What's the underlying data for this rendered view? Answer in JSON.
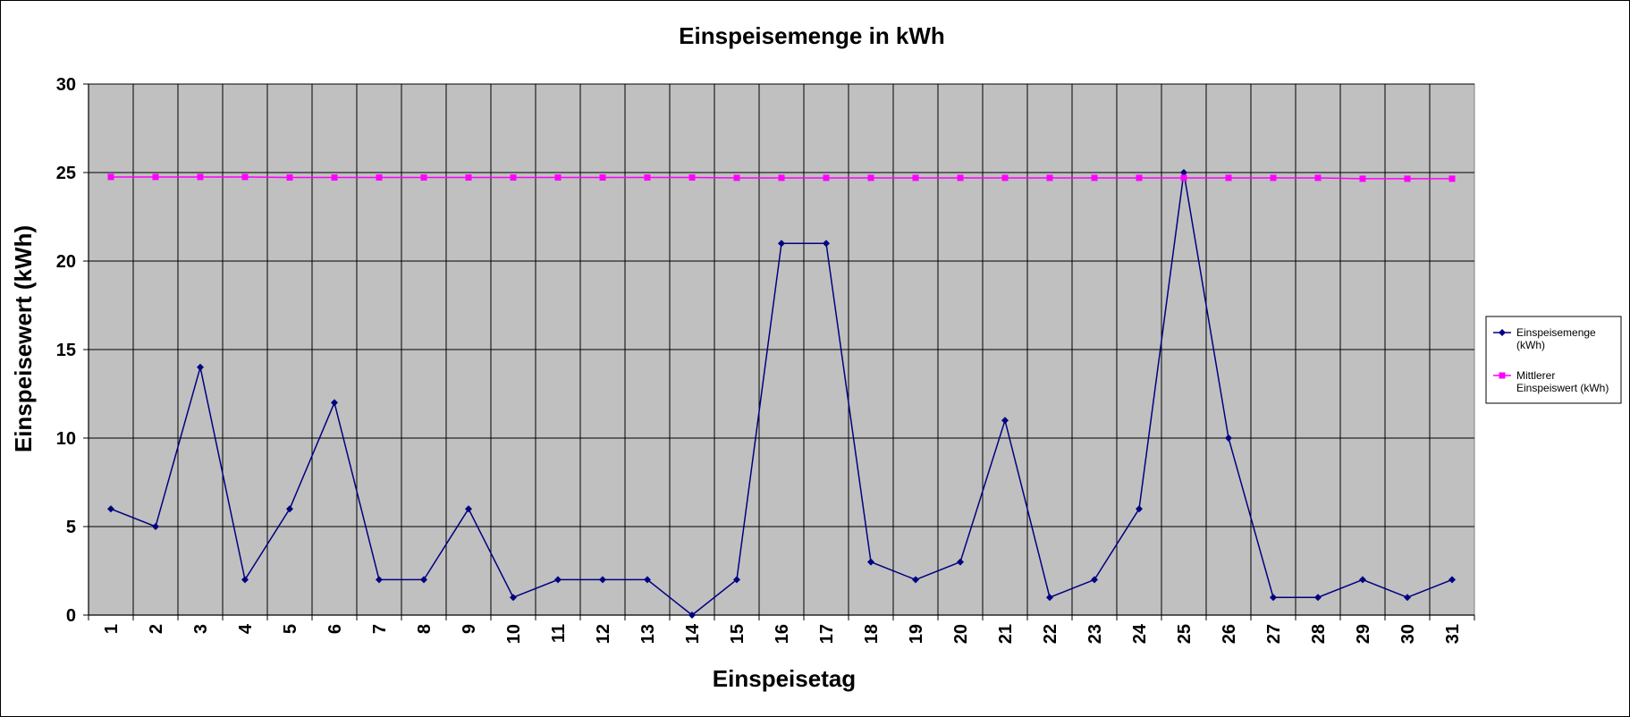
{
  "chart_data": {
    "type": "line",
    "title": "Einspeisemenge in kWh",
    "xlabel": "Einspeisetag",
    "ylabel": "Einspeisewert  (kWh)",
    "ylim": [
      0,
      30
    ],
    "yticks": [
      0,
      5,
      10,
      15,
      20,
      25,
      30
    ],
    "grid": true,
    "legend_position": "right",
    "plot_background": "#c0c0c0",
    "categories": [
      "1",
      "2",
      "3",
      "4",
      "5",
      "6",
      "7",
      "8",
      "9",
      "10",
      "11",
      "12",
      "13",
      "14",
      "15",
      "16",
      "17",
      "18",
      "19",
      "20",
      "21",
      "22",
      "23",
      "24",
      "25",
      "26",
      "27",
      "28",
      "29",
      "30",
      "31"
    ],
    "series": [
      {
        "name": "Einspeisemenge (kWh)",
        "color": "#000080",
        "marker": "diamond",
        "values": [
          6,
          5,
          14,
          2,
          6,
          12,
          2,
          2,
          6,
          1,
          2,
          2,
          2,
          0,
          2,
          21,
          21,
          3,
          2,
          3,
          11,
          1,
          2,
          6,
          25,
          10,
          1,
          1,
          2,
          1,
          2
        ]
      },
      {
        "name": "Mittlerer Einspeiswert (kWh)",
        "color": "#ff00ff",
        "marker": "square",
        "values": [
          24.75,
          24.75,
          24.75,
          24.75,
          24.72,
          24.72,
          24.72,
          24.72,
          24.72,
          24.72,
          24.72,
          24.72,
          24.72,
          24.72,
          24.7,
          24.7,
          24.7,
          24.7,
          24.7,
          24.7,
          24.7,
          24.7,
          24.7,
          24.7,
          24.7,
          24.7,
          24.7,
          24.7,
          24.65,
          24.65,
          24.65
        ]
      }
    ],
    "legend_lines": [
      [
        "Einspeisemenge",
        "(kWh)"
      ],
      [
        "Mittlerer",
        "Einspeiswert (kWh)"
      ]
    ]
  }
}
